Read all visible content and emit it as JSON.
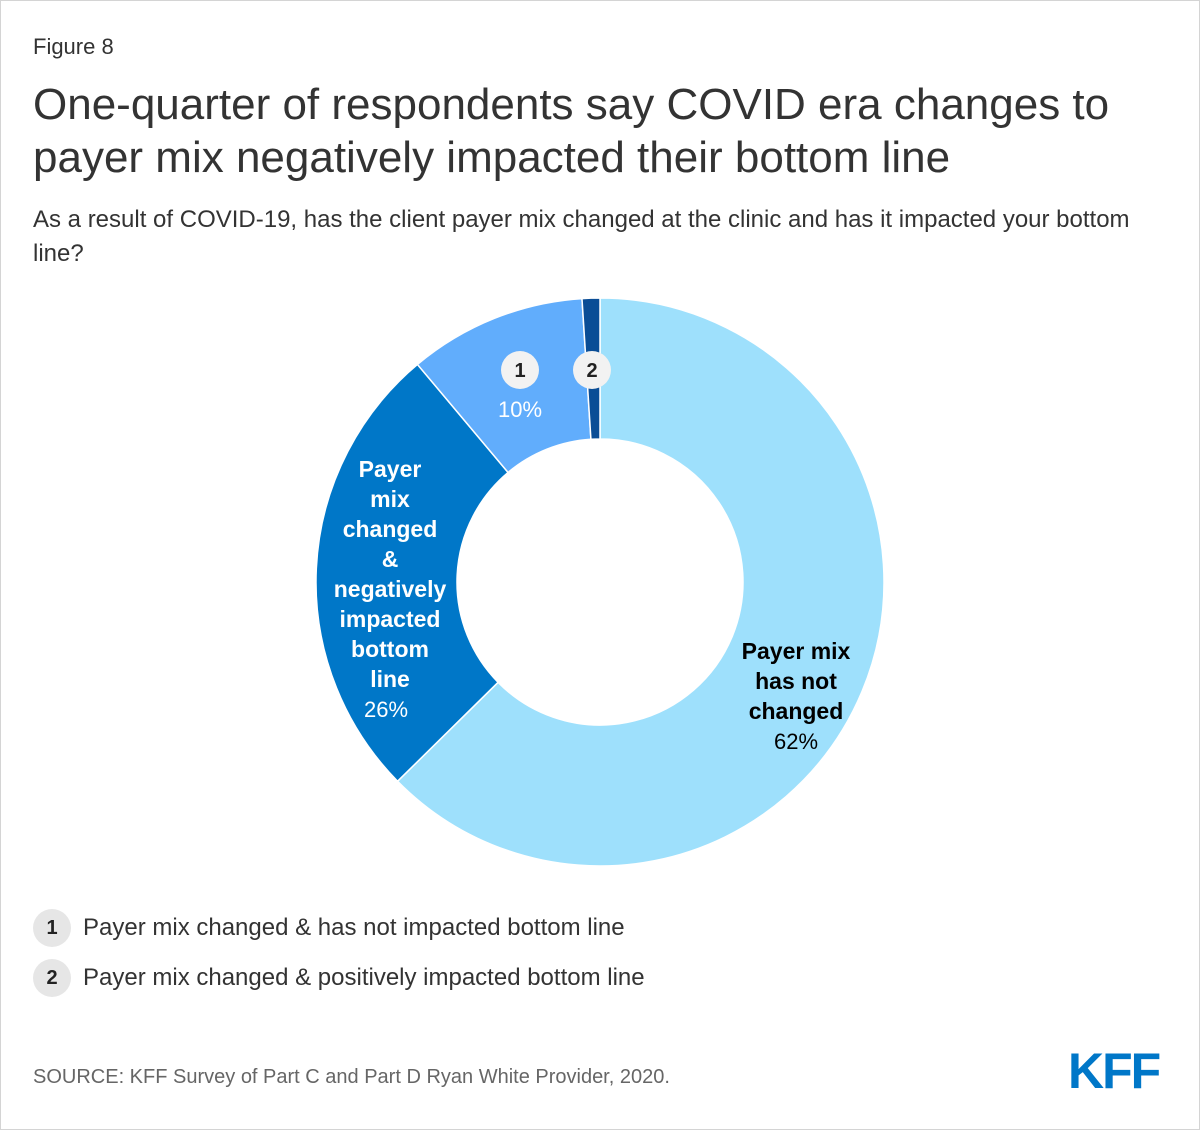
{
  "figure_label": "Figure 8",
  "title": "One-quarter of respondents say COVID era changes to payer mix negatively impacted their bottom line",
  "subtitle": "As a result of COVID-19, has the client payer mix changed at the clinic and has it impacted your bottom line?",
  "source": "SOURCE: KFF Survey of Part C and Part D Ryan White Provider, 2020.",
  "logo": "KFF",
  "legend": [
    {
      "badge": "1",
      "label": "Payer mix changed & has not impacted bottom line"
    },
    {
      "badge": "2",
      "label": "Payer mix changed & positively impacted bottom line"
    }
  ],
  "chart_data": {
    "type": "pie",
    "variant": "donut",
    "start": "12 o'clock, clockwise",
    "slices": [
      {
        "key": "not-changed",
        "label": "Payer mix has not changed",
        "value": 62,
        "value_label": "62%",
        "color": "#9ee0fc",
        "label_color": "#000000"
      },
      {
        "key": "negative",
        "label": "Payer mix changed & negatively impacted bottom line",
        "value": 26,
        "value_label": "26%",
        "color": "#0077c8",
        "label_color": "#ffffff"
      },
      {
        "key": "no-impact",
        "label": "1",
        "value": 10,
        "value_label": "10%",
        "color": "#61adfc",
        "label_color": "#ffffff"
      },
      {
        "key": "positive",
        "label": "2",
        "value": 1,
        "value_label": "",
        "color": "#0a4d96",
        "label_color": "#ffffff"
      }
    ]
  }
}
